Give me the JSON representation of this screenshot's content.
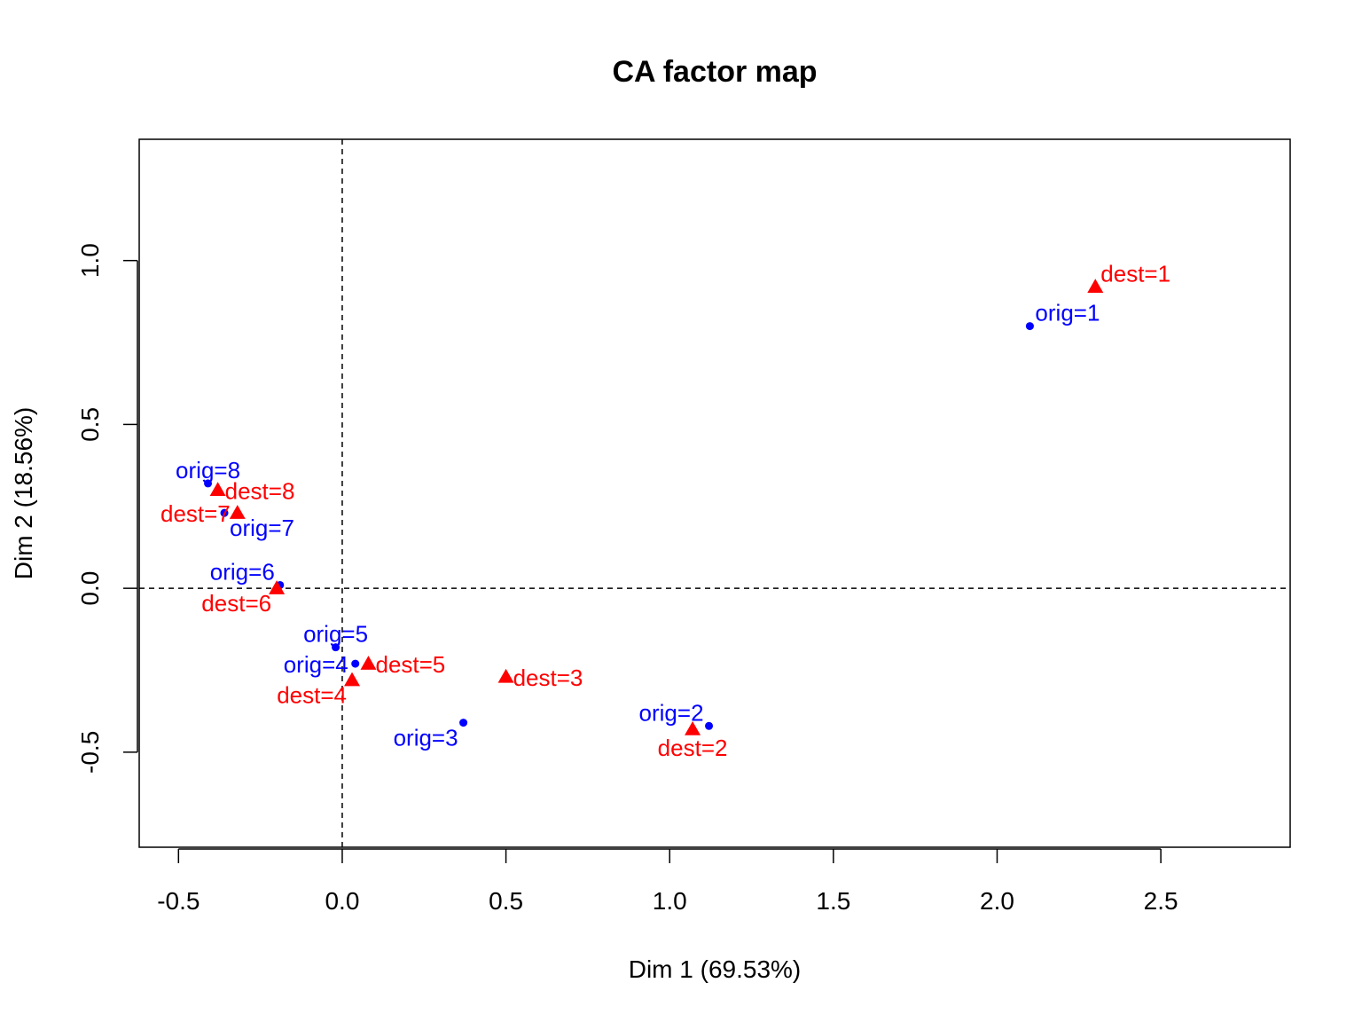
{
  "chart_data": {
    "type": "scatter",
    "title": "CA factor map",
    "xlabel": "Dim 1 (69.53%)",
    "ylabel": "Dim 2 (18.56%)",
    "xlim": [
      -0.62,
      2.895
    ],
    "ylim": [
      -0.79,
      1.37
    ],
    "xticks": [
      -0.5,
      0.0,
      0.5,
      1.0,
      1.5,
      2.0,
      2.5
    ],
    "xtick_labels": [
      "-0.5",
      "0.0",
      "0.5",
      "1.0",
      "1.5",
      "2.0",
      "2.5"
    ],
    "yticks": [
      -0.5,
      0.0,
      0.5,
      1.0
    ],
    "ytick_labels": [
      "-0.5",
      "0.0",
      "0.5",
      "1.0"
    ],
    "reference_lines": {
      "x": 0,
      "y": 0,
      "style": "dashed"
    },
    "grid": false,
    "legend": "none",
    "series": [
      {
        "name": "orig",
        "marker": "circle",
        "color": "#0000FF",
        "points": [
          {
            "label": "orig=1",
            "x": 2.1,
            "y": 0.8,
            "anchor": "right-up"
          },
          {
            "label": "orig=2",
            "x": 1.12,
            "y": -0.42,
            "anchor": "left-up"
          },
          {
            "label": "orig=3",
            "x": 0.37,
            "y": -0.41,
            "anchor": "left-down"
          },
          {
            "label": "orig=4",
            "x": 0.04,
            "y": -0.23,
            "anchor": "left"
          },
          {
            "label": "orig=5",
            "x": -0.02,
            "y": -0.18,
            "anchor": "up"
          },
          {
            "label": "orig=6",
            "x": -0.19,
            "y": 0.01,
            "anchor": "left-up"
          },
          {
            "label": "orig=7",
            "x": -0.36,
            "y": 0.23,
            "anchor": "right-down"
          },
          {
            "label": "orig=8",
            "x": -0.41,
            "y": 0.32,
            "anchor": "up"
          }
        ]
      },
      {
        "name": "dest",
        "marker": "triangle",
        "color": "#FF0000",
        "points": [
          {
            "label": "dest=1",
            "x": 2.3,
            "y": 0.92,
            "anchor": "right-up"
          },
          {
            "label": "dest=2",
            "x": 1.07,
            "y": -0.43,
            "anchor": "down"
          },
          {
            "label": "dest=3",
            "x": 0.5,
            "y": -0.27,
            "anchor": "right"
          },
          {
            "label": "dest=4",
            "x": 0.03,
            "y": -0.28,
            "anchor": "left-down"
          },
          {
            "label": "dest=5",
            "x": 0.08,
            "y": -0.23,
            "anchor": "right"
          },
          {
            "label": "dest=6",
            "x": -0.2,
            "y": 0.0,
            "anchor": "left-down"
          },
          {
            "label": "dest=7",
            "x": -0.32,
            "y": 0.23,
            "anchor": "left"
          },
          {
            "label": "dest=8",
            "x": -0.38,
            "y": 0.3,
            "anchor": "right"
          }
        ]
      }
    ]
  }
}
